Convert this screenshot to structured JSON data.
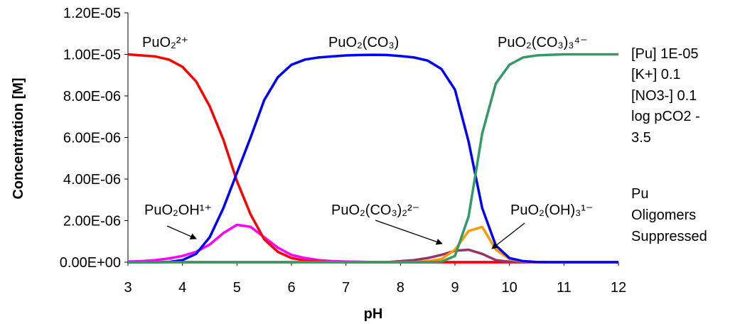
{
  "chart_data": {
    "type": "line",
    "x_label": "pH",
    "y_label": "Concentration [M]",
    "x": [
      3,
      3.25,
      3.5,
      3.75,
      4,
      4.25,
      4.5,
      4.75,
      5,
      5.25,
      5.5,
      5.75,
      6,
      6.25,
      6.5,
      6.75,
      7,
      7.25,
      7.5,
      7.75,
      8,
      8.25,
      8.5,
      8.75,
      9,
      9.25,
      9.5,
      9.75,
      10,
      10.25,
      10.5,
      10.75,
      11,
      11.25,
      11.5,
      11.75,
      12
    ],
    "series": [
      {
        "name": "PuO₂OH¹⁺",
        "color": "#ff00ff",
        "values": [
          3e-08,
          5e-08,
          1e-07,
          1.8e-07,
          3e-07,
          5e-07,
          8.5e-07,
          1.4e-06,
          1.8e-06,
          1.7e-06,
          1.2e-06,
          7e-07,
          3.5e-07,
          2e-07,
          1e-07,
          5e-08,
          3e-08,
          2e-08,
          1e-08,
          0,
          0,
          0,
          0,
          0,
          0,
          0,
          0,
          0,
          0,
          0,
          0,
          0,
          0,
          0,
          0,
          0,
          0
        ]
      },
      {
        "name": "PuO₂²⁺",
        "color": "#ff0000",
        "values": [
          1e-05,
          9.95e-06,
          9.9e-06,
          9.75e-06,
          9.4e-06,
          8.7e-06,
          7.5e-06,
          5.9e-06,
          3.9e-06,
          2.3e-06,
          1.1e-06,
          5e-07,
          2e-07,
          8e-08,
          3e-08,
          1e-08,
          0,
          0,
          0,
          0,
          0,
          0,
          0,
          0,
          0,
          0,
          0,
          0,
          0,
          0,
          0,
          0,
          0,
          0,
          0,
          0,
          0
        ]
      },
      {
        "name": "PuO₂(CO₃)₂²⁻",
        "color": "#993366",
        "values": [
          0,
          0,
          0,
          0,
          0,
          0,
          0,
          0,
          0,
          0,
          0,
          0,
          0,
          0,
          0,
          0,
          0,
          0,
          0,
          0,
          5e-08,
          1e-07,
          2e-07,
          3.5e-07,
          5.5e-07,
          6e-07,
          4e-07,
          1e-07,
          2e-08,
          0,
          0,
          0,
          0,
          0,
          0,
          0,
          0
        ]
      },
      {
        "name": "PuO₂(OH)₃¹⁻",
        "color": "#ff9900",
        "values": [
          0,
          0,
          0,
          0,
          0,
          0,
          0,
          0,
          0,
          0,
          0,
          0,
          0,
          0,
          0,
          0,
          0,
          0,
          0,
          0,
          0,
          0,
          5e-08,
          1.5e-07,
          6e-07,
          1.5e-06,
          1.7e-06,
          6e-07,
          1.5e-07,
          3e-08,
          0,
          0,
          0,
          0,
          0,
          0,
          0
        ]
      },
      {
        "name": "PuO₂(CO₃)",
        "color": "#0000ff",
        "values": [
          0,
          0,
          0,
          1e-08,
          1e-07,
          4e-07,
          1.2e-06,
          2.6e-06,
          4.3e-06,
          6e-06,
          7.8e-06,
          8.9e-06,
          9.5e-06,
          9.75e-06,
          9.85e-06,
          9.9e-06,
          9.95e-06,
          9.97e-06,
          9.98e-06,
          9.97e-06,
          9.92e-06,
          9.85e-06,
          9.7e-06,
          9.3e-06,
          8.3e-06,
          5.8e-06,
          2.6e-06,
          8e-07,
          2e-07,
          5e-08,
          1e-08,
          0,
          0,
          0,
          0,
          0,
          0
        ]
      },
      {
        "name": "PuO₂(CO₃)₃⁴⁻",
        "color": "#339966",
        "values": [
          0,
          0,
          0,
          0,
          0,
          0,
          0,
          0,
          0,
          0,
          0,
          0,
          0,
          0,
          0,
          0,
          0,
          0,
          0,
          0,
          0,
          0,
          0,
          2e-08,
          3e-07,
          2.2e-06,
          6.2e-06,
          8.6e-06,
          9.5e-06,
          9.85e-06,
          9.95e-06,
          9.98e-06,
          1e-05,
          1e-05,
          1e-05,
          1e-05,
          1e-05
        ]
      }
    ],
    "xlim": [
      3,
      12
    ],
    "xticks": [
      3,
      4,
      5,
      6,
      7,
      8,
      9,
      10,
      11,
      12
    ],
    "ylim": [
      0,
      1.2e-05
    ],
    "yticks": [
      {
        "value": 0,
        "label": "0.00E+00"
      },
      {
        "value": 2e-06,
        "label": "2.00E-06"
      },
      {
        "value": 4e-06,
        "label": "4.00E-06"
      },
      {
        "value": 6e-06,
        "label": "6.00E-06"
      },
      {
        "value": 8e-06,
        "label": "8.00E-06"
      },
      {
        "value": 1e-05,
        "label": "1.00E-05"
      },
      {
        "value": 1.2e-05,
        "label": "1.20E-05"
      }
    ],
    "notes": [
      "[Pu] 1E-05",
      "[K+] 0.1",
      "[NO3-] 0.1",
      "log pCO2 -",
      "3.5",
      "Pu",
      "Oligomers",
      "Suppressed"
    ]
  }
}
